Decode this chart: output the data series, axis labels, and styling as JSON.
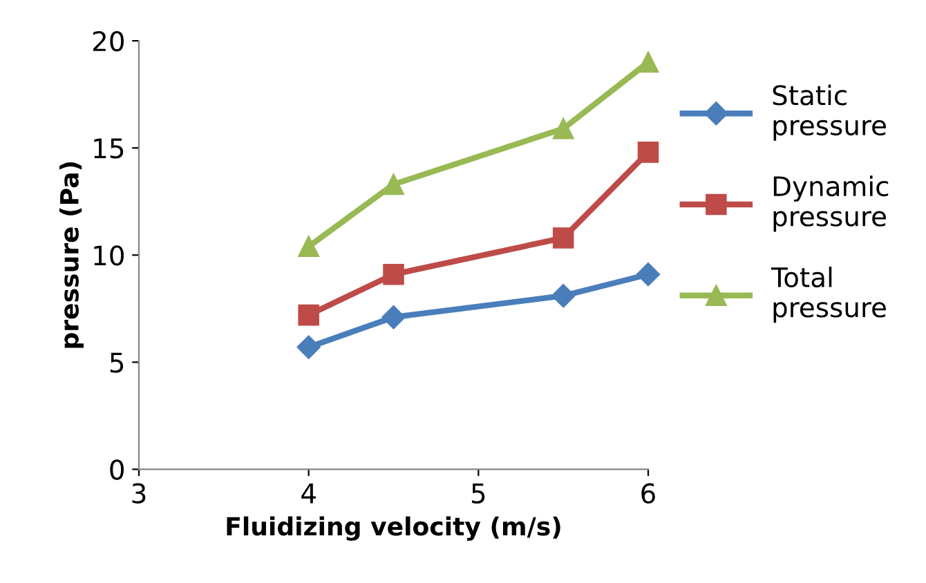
{
  "chart_data": {
    "type": "line",
    "xlabel": "Fluidizing velocity (m/s)",
    "ylabel": "pressure (Pa)",
    "x": [
      4,
      4.5,
      5.5,
      6
    ],
    "series": [
      {
        "name": "Static pressure",
        "color": "#4a7ebb",
        "marker": "diamond",
        "values": [
          5.7,
          7.1,
          8.1,
          9.1
        ]
      },
      {
        "name": "Dynamic pressure",
        "color": "#be4b48",
        "marker": "square",
        "values": [
          7.2,
          9.1,
          10.8,
          14.8
        ]
      },
      {
        "name": "Total pressure",
        "color": "#98b954",
        "marker": "triangle",
        "values": [
          10.4,
          13.3,
          15.9,
          19.0
        ]
      }
    ],
    "xlim": [
      3,
      6
    ],
    "xticks": [
      3,
      4,
      5,
      6
    ],
    "ylim": [
      0,
      20
    ],
    "yticks": [
      0,
      5,
      10,
      15,
      20
    ],
    "grid": false,
    "legend": "right",
    "line_style": "solid"
  }
}
